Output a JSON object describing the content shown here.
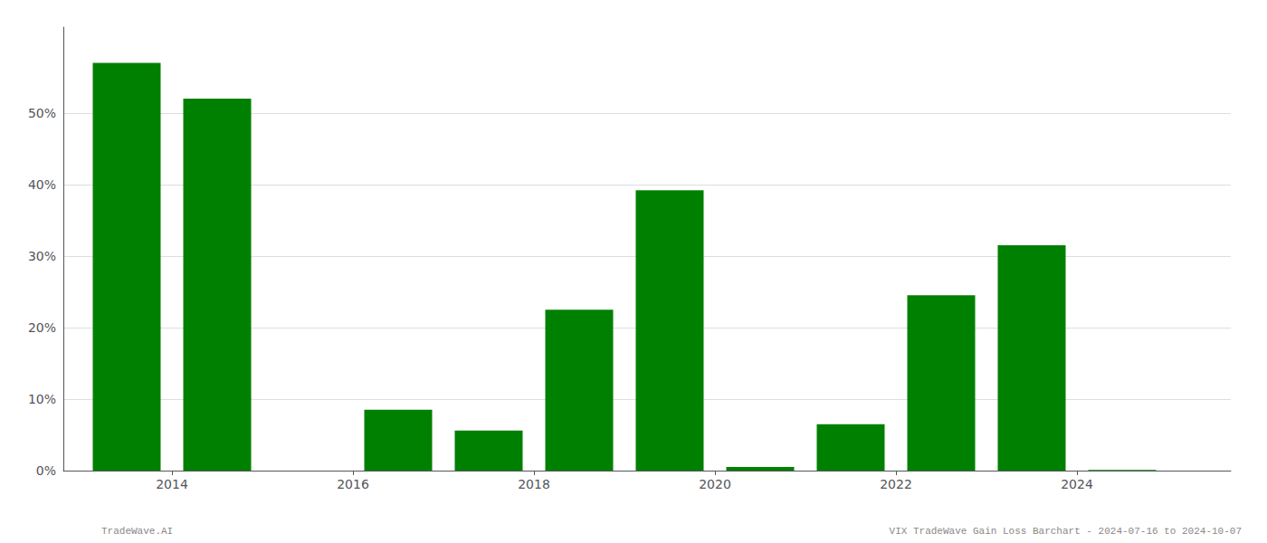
{
  "chart_data": {
    "type": "bar",
    "x": [
      2013,
      2014,
      2016,
      2017,
      2018,
      2019,
      2020,
      2021,
      2022,
      2023,
      2024
    ],
    "values": [
      0.57,
      0.52,
      0.085,
      0.056,
      0.225,
      0.392,
      0.005,
      0.065,
      0.245,
      0.315,
      0.001
    ],
    "color": "#008000",
    "xlim": [
      2012.3,
      2025.2
    ],
    "xticks": [
      {
        "value": 2013.5,
        "label": "2014"
      },
      {
        "value": 2015.5,
        "label": "2016"
      },
      {
        "value": 2017.5,
        "label": "2018"
      },
      {
        "value": 2019.5,
        "label": "2020"
      },
      {
        "value": 2021.5,
        "label": "2022"
      },
      {
        "value": 2023.5,
        "label": "2024"
      }
    ],
    "ylim": [
      0,
      0.62
    ],
    "yticks": [
      {
        "value": 0,
        "label": "0%"
      },
      {
        "value": 0.1,
        "label": "10%"
      },
      {
        "value": 0.2,
        "label": "20%"
      },
      {
        "value": 0.3,
        "label": "30%"
      },
      {
        "value": 0.4,
        "label": "40%"
      },
      {
        "value": 0.5,
        "label": "50%"
      }
    ],
    "grid": true,
    "annotations": [
      "TradeWave.AI",
      "VIX TradeWave Gain Loss Barchart - 2024-07-16 to 2024-10-07"
    ]
  }
}
